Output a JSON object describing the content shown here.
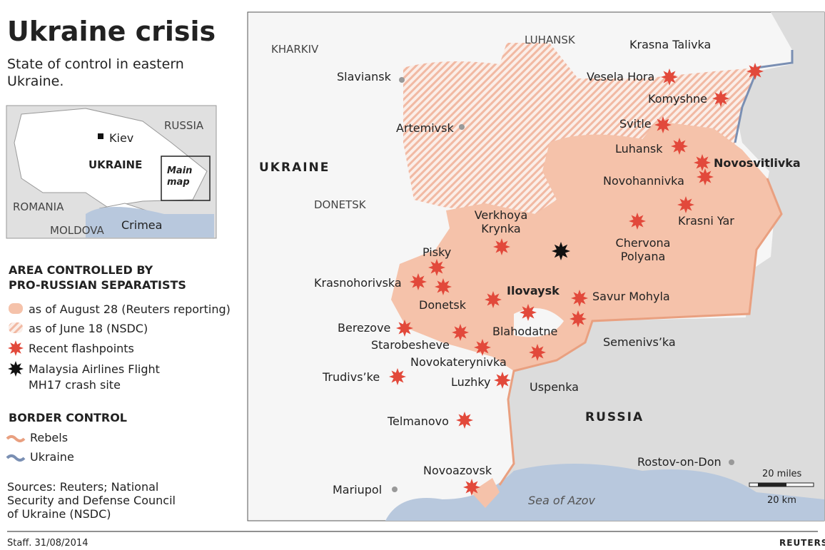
{
  "header": {
    "title": "Ukraine crisis",
    "subtitle": "State of control in eastern Ukraine."
  },
  "inset": {
    "capital": "Kiev",
    "russia": "RUSSIA",
    "ukraine": "UKRAINE",
    "romania": "ROMANIA",
    "moldova": "MOLDOVA",
    "crimea": "Crimea",
    "main_map": "Main map"
  },
  "legend": {
    "area_title": "AREA CONTROLLED BY PRO-RUSSIAN SEPARATISTS",
    "items": [
      "as of August 28 (Reuters reporting)",
      "as of June 18 (NSDC)",
      "Recent flashpoints",
      "Malaysia Airlines Flight MH17 crash site"
    ],
    "border_title": "BORDER CONTROL",
    "border_items": [
      "Rebels",
      "Ukraine"
    ]
  },
  "sources": "Sources: Reuters; National Security and Defense Council of Ukraine (NSDC)",
  "map": {
    "regions": [
      "KHARKIV",
      "LUHANSK",
      "DONETSK"
    ],
    "countries": [
      "UKRAINE",
      "RUSSIA"
    ],
    "cities": [
      "Slaviansk",
      "Artemivsk",
      "Mariupol",
      "Rostov-on-Don",
      "Donetsk",
      "Uspenka"
    ],
    "flashpoints": [
      "Krasna Talivka",
      "Vesela Hora",
      "Komyshne",
      "Svitle",
      "Luhansk",
      "Novosvitlivka",
      "Novohannivka",
      "Krasni Yar",
      "Chervona Polyana",
      "Verkhoya Krynka",
      "Pisky",
      "Krasnohorivska",
      "Ilovaysk",
      "Savur Mohyla",
      "Blahodatne",
      "Semenivs’ka",
      "Berezove",
      "Starobesheve",
      "Novokaterynivka",
      "Trudivs’ke",
      "Luzhky",
      "Telmanovo",
      "Novoazovsk"
    ],
    "sea": "Sea of Azov",
    "scale": [
      "20 miles",
      "20 km"
    ]
  },
  "footer": {
    "credit": "Staff. 31/08/2014",
    "brand": "REUTERS"
  }
}
